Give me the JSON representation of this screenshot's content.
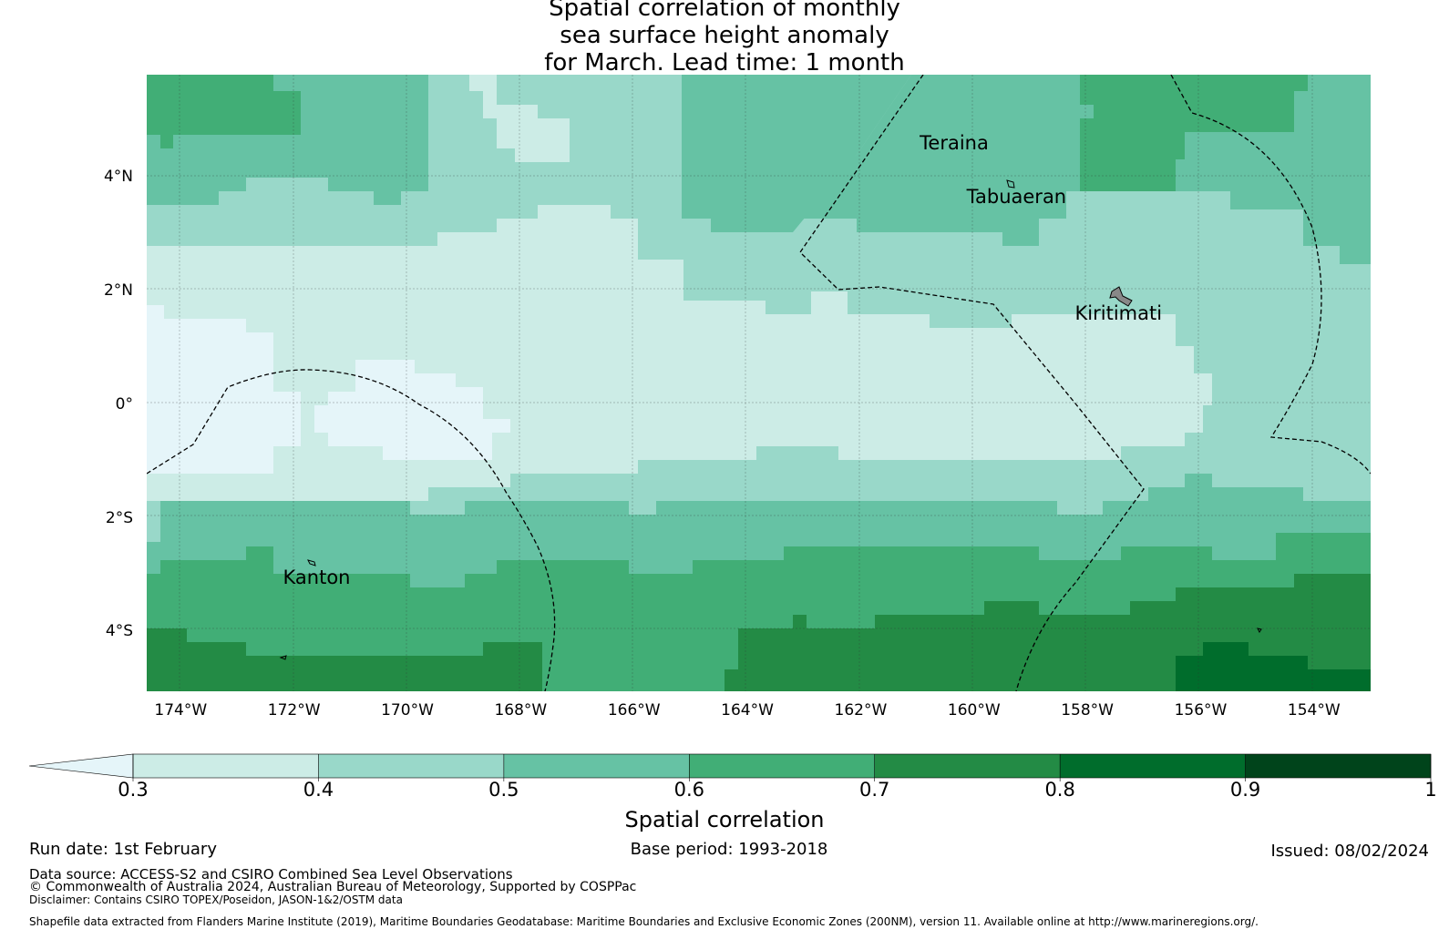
{
  "title": {
    "line1": "Spatial correlation of monthly",
    "line2": "sea surface height anomaly",
    "line3": "for March. Lead time: 1 month"
  },
  "map": {
    "lon_range": [
      -174.6,
      -153
    ],
    "lat_range": [
      -5.05,
      5.8
    ],
    "x_ticks": [
      "174°W",
      "172°W",
      "170°W",
      "168°W",
      "166°W",
      "164°W",
      "162°W",
      "160°W",
      "158°W",
      "156°W",
      "154°W"
    ],
    "x_tick_values": [
      -174,
      -172,
      -170,
      -168,
      -166,
      -164,
      -162,
      -160,
      -158,
      -156,
      -154
    ],
    "y_ticks": [
      "4°N",
      "2°N",
      "0°",
      "2°S",
      "4°S"
    ],
    "y_tick_values": [
      4,
      2,
      0,
      -2,
      -4
    ],
    "places": [
      {
        "name": "Teraina",
        "lon": -160.35,
        "lat": 4.6
      },
      {
        "name": "Tabuaeran",
        "lon": -159.25,
        "lat": 3.65
      },
      {
        "name": "Kiritimati",
        "lon": -157.45,
        "lat": 1.6
      },
      {
        "name": "Kanton",
        "lon": -171.6,
        "lat": -3.05
      }
    ]
  },
  "colorbar": {
    "ticks": [
      "0.3",
      "0.4",
      "0.5",
      "0.6",
      "0.7",
      "0.8",
      "0.9",
      "1"
    ],
    "colors": [
      "#e5f5f9",
      "#ccece6",
      "#99d8c9",
      "#66c2a4",
      "#41ae76",
      "#238b45",
      "#006d2c",
      "#00441b"
    ],
    "label": "Spatial correlation"
  },
  "footer": {
    "run_date": "Run date: 1st February",
    "base_period": "Base period: 1993-2018",
    "issued": "Issued: 08/02/2024",
    "data_source": "Data source: ACCESS-S2 and CSIRO Combined Sea Level Observations",
    "copyright": "© Commonwealth of Australia 2024, Australian Bureau of Meteorology, Supported by COSPPac",
    "disclaimer": "Disclaimer: Contains CSIRO TOPEX/Poseidon, JASON-1&2/OSTM data",
    "shapefile": "Shapefile data extracted from Flanders Marine Institute (2019), Maritime Boundaries Geodatabase: Maritime Boundaries and Exclusive Economic Zones (200NM), version 11. Available online at http://www.marineregions.org/."
  }
}
